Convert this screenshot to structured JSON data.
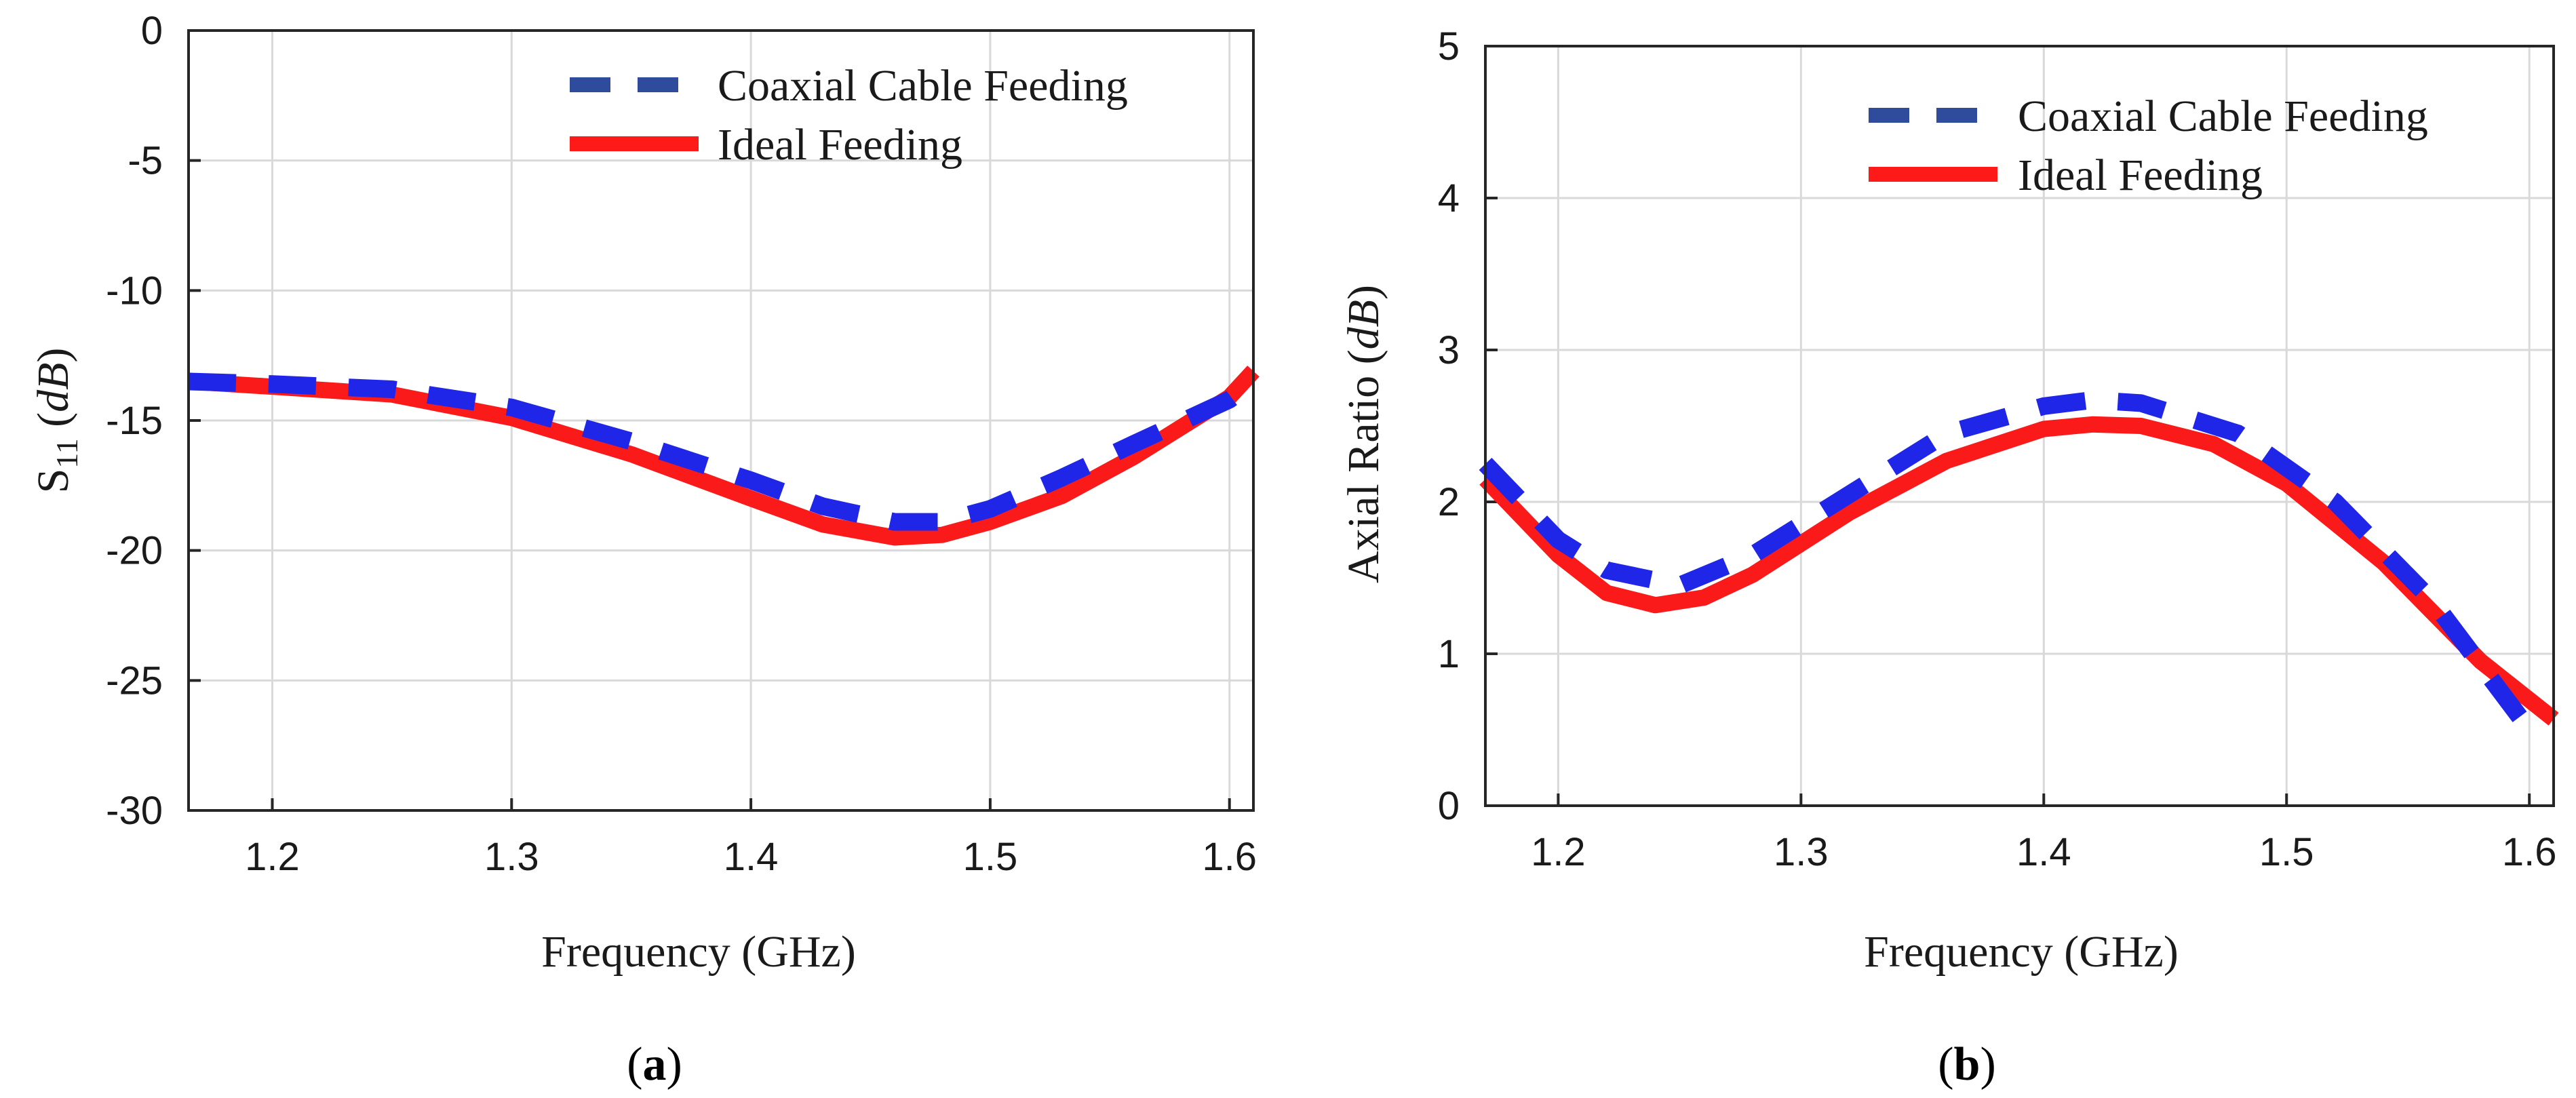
{
  "colors": {
    "coaxial": "#1f26e8",
    "ideal": "#fb1a1a",
    "legend_coaxial": "#2f4b9b",
    "legend_ideal": "#ff1a1a"
  },
  "chart_data": [
    {
      "type": "line",
      "caption": "a",
      "xlabel": "Frequency (GHz)",
      "ylabel_main": "S",
      "ylabel_sub": "11",
      "ylabel_unit": "dB",
      "xlim": [
        1.165,
        1.61
      ],
      "ylim": [
        -30,
        0
      ],
      "xticks": [
        1.2,
        1.3,
        1.4,
        1.5,
        1.6
      ],
      "xtick_labels": [
        "1.2",
        "1.3",
        "1.4",
        "1.5",
        "1.6"
      ],
      "yticks": [
        0,
        -5,
        -10,
        -15,
        -20,
        -25,
        -30
      ],
      "ytick_labels": [
        "0",
        "-5",
        "-10",
        "-15",
        "-20",
        "-25",
        "-30"
      ],
      "grid": true,
      "legend_position": "top-right",
      "series": [
        {
          "name": "Coaxial Cable Feeding",
          "style": "dashed",
          "x": [
            1.165,
            1.2,
            1.25,
            1.3,
            1.35,
            1.4,
            1.43,
            1.46,
            1.48,
            1.5,
            1.53,
            1.56,
            1.6,
            1.61
          ],
          "y": [
            -13.5,
            -13.6,
            -13.8,
            -14.5,
            -15.8,
            -17.3,
            -18.3,
            -18.9,
            -18.9,
            -18.4,
            -17.2,
            -15.9,
            -14.2,
            -13.5
          ]
        },
        {
          "name": "Ideal Feeding",
          "style": "solid",
          "x": [
            1.165,
            1.2,
            1.25,
            1.3,
            1.35,
            1.4,
            1.43,
            1.46,
            1.48,
            1.5,
            1.53,
            1.56,
            1.6,
            1.61
          ],
          "y": [
            -13.5,
            -13.7,
            -14.0,
            -14.9,
            -16.3,
            -18.0,
            -19.0,
            -19.5,
            -19.4,
            -18.9,
            -17.9,
            -16.4,
            -14.1,
            -13.1
          ]
        }
      ]
    },
    {
      "type": "line",
      "caption": "b",
      "xlabel": "Frequency (GHz)",
      "ylabel_main": "Axial Ratio",
      "ylabel_unit": "dB",
      "xlim": [
        1.17,
        1.61
      ],
      "ylim": [
        0,
        5
      ],
      "xticks": [
        1.2,
        1.3,
        1.4,
        1.5,
        1.6
      ],
      "xtick_labels": [
        "1.2",
        "1.3",
        "1.4",
        "1.5",
        "1.6"
      ],
      "yticks": [
        0,
        1,
        2,
        3,
        4,
        5
      ],
      "ytick_labels": [
        "0",
        "1",
        "2",
        "3",
        "4",
        "5"
      ],
      "grid": true,
      "legend_position": "top-right",
      "series": [
        {
          "name": "Coaxial Cable Feeding",
          "style": "dashed",
          "x": [
            1.17,
            1.2,
            1.22,
            1.25,
            1.28,
            1.32,
            1.36,
            1.4,
            1.42,
            1.44,
            1.48,
            1.52,
            1.56,
            1.6
          ],
          "y": [
            2.25,
            1.75,
            1.55,
            1.45,
            1.65,
            2.05,
            2.45,
            2.63,
            2.67,
            2.65,
            2.45,
            2.0,
            1.35,
            0.5
          ]
        },
        {
          "name": "Ideal Feeding",
          "style": "solid",
          "x": [
            1.17,
            1.2,
            1.22,
            1.24,
            1.26,
            1.28,
            1.32,
            1.36,
            1.4,
            1.42,
            1.44,
            1.47,
            1.5,
            1.54,
            1.58,
            1.61
          ],
          "y": [
            2.15,
            1.65,
            1.4,
            1.32,
            1.37,
            1.52,
            1.93,
            2.27,
            2.48,
            2.51,
            2.5,
            2.38,
            2.12,
            1.6,
            0.95,
            0.57
          ]
        }
      ]
    }
  ]
}
